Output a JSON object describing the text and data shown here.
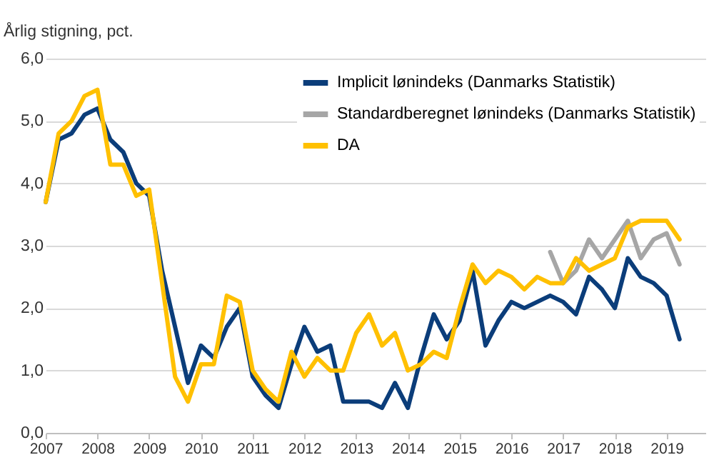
{
  "chart_data": {
    "type": "line",
    "ylabel": "Årlig stigning, pct.",
    "x": [
      2007,
      2007.25,
      2007.5,
      2007.75,
      2008,
      2008.25,
      2008.5,
      2008.75,
      2009,
      2009.25,
      2009.5,
      2009.75,
      2010,
      2010.25,
      2010.5,
      2010.75,
      2011,
      2011.25,
      2011.5,
      2011.75,
      2012,
      2012.25,
      2012.5,
      2012.75,
      2013,
      2013.25,
      2013.5,
      2013.75,
      2014,
      2014.25,
      2014.5,
      2014.75,
      2015,
      2015.25,
      2015.5,
      2015.75,
      2016,
      2016.25,
      2016.5,
      2016.75,
      2017,
      2017.25,
      2017.5,
      2017.75,
      2018,
      2018.25,
      2018.5,
      2018.75,
      2019,
      2019.25
    ],
    "series": [
      {
        "name": "Implicit lønindeks (Danmarks Statistik)",
        "color": "#0b3d7a",
        "values": [
          3.7,
          4.7,
          4.8,
          5.1,
          5.2,
          4.7,
          4.5,
          4.0,
          3.8,
          2.6,
          1.7,
          0.8,
          1.4,
          1.2,
          1.7,
          2.0,
          0.9,
          0.6,
          0.4,
          1.1,
          1.7,
          1.3,
          1.4,
          0.5,
          0.5,
          0.5,
          0.4,
          0.8,
          0.4,
          1.2,
          1.9,
          1.5,
          1.8,
          2.6,
          1.4,
          1.8,
          2.1,
          2.0,
          2.1,
          2.2,
          2.1,
          1.9,
          2.5,
          2.3,
          2.0,
          2.8,
          2.5,
          2.4,
          2.2,
          1.5
        ]
      },
      {
        "name": "Standardberegnet lønindeks (Danmarks Statistik)",
        "color": "#a6a6a6",
        "values": [
          null,
          null,
          null,
          null,
          null,
          null,
          null,
          null,
          null,
          null,
          null,
          null,
          null,
          null,
          null,
          null,
          null,
          null,
          null,
          null,
          null,
          null,
          null,
          null,
          null,
          null,
          null,
          null,
          null,
          null,
          null,
          null,
          null,
          null,
          null,
          null,
          null,
          null,
          null,
          2.9,
          2.4,
          2.6,
          3.1,
          2.8,
          3.1,
          3.4,
          2.8,
          3.1,
          3.2,
          2.7
        ]
      },
      {
        "name": "DA",
        "color": "#ffc000",
        "values": [
          3.7,
          4.8,
          5.0,
          5.4,
          5.5,
          4.3,
          4.3,
          3.8,
          3.9,
          2.4,
          0.9,
          0.5,
          1.1,
          1.1,
          2.2,
          2.1,
          1.0,
          0.7,
          0.5,
          1.3,
          0.9,
          1.2,
          1.0,
          1.0,
          1.6,
          1.9,
          1.4,
          1.6,
          1.0,
          1.1,
          1.3,
          1.2,
          2.0,
          2.7,
          2.4,
          2.6,
          2.5,
          2.3,
          2.5,
          2.4,
          2.4,
          2.8,
          2.6,
          2.7,
          2.8,
          3.3,
          3.4,
          3.4,
          3.4,
          3.1
        ]
      }
    ],
    "xlim": [
      2007,
      2019.75
    ],
    "xticks": [
      2007,
      2008,
      2009,
      2010,
      2011,
      2012,
      2013,
      2014,
      2015,
      2016,
      2017,
      2018,
      2019
    ],
    "ylim": [
      0,
      6
    ],
    "yticks": [
      {
        "value": 0,
        "label": "0,0"
      },
      {
        "value": 1,
        "label": "1,0"
      },
      {
        "value": 2,
        "label": "2,0"
      },
      {
        "value": 3,
        "label": "3,0"
      },
      {
        "value": 4,
        "label": "4,0"
      },
      {
        "value": 5,
        "label": "5,0"
      },
      {
        "value": 6,
        "label": "6,0"
      }
    ],
    "grid": "y",
    "legend": "top right",
    "marker": "none",
    "line_style": "solid"
  }
}
